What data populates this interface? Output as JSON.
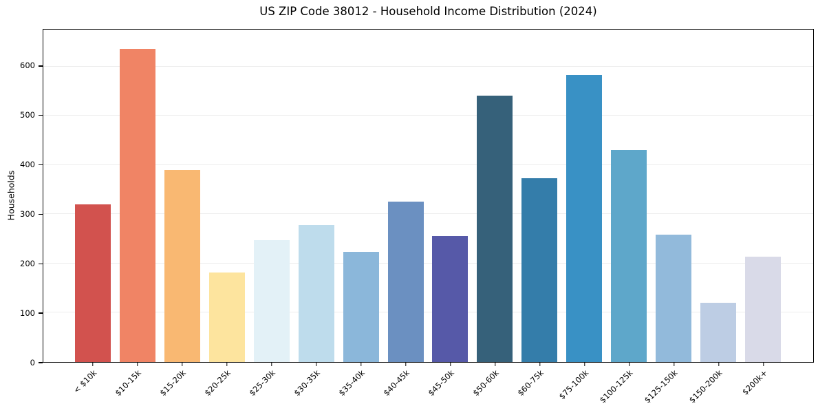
{
  "title": "US ZIP Code 38012 - Household Income Distribution (2024)",
  "chart_data": {
    "type": "bar",
    "title": "US ZIP Code 38012 - Household Income Distribution (2024)",
    "xlabel": "",
    "ylabel": "Households",
    "ylim": [
      0,
      675
    ],
    "yticks": [
      0,
      100,
      200,
      300,
      400,
      500,
      600
    ],
    "grid": "horizontal-light-gray",
    "legend": "none",
    "categories": [
      "< $10k",
      "$10-15k",
      "$15-20k",
      "$20-25k",
      "$25-30k",
      "$30-35k",
      "$35-40k",
      "$40-45k",
      "$45-50k",
      "$50-60k",
      "$60-75k",
      "$75-100k",
      "$100-125k",
      "$125-150k",
      "$150-200k",
      "$200k+"
    ],
    "values": [
      320,
      636,
      390,
      182,
      248,
      278,
      224,
      325,
      256,
      541,
      373,
      583,
      430,
      258,
      120,
      214
    ],
    "bar_colors": [
      "#d2524e",
      "#f08465",
      "#f9b872",
      "#fde49e",
      "#e3f1f7",
      "#bedcec",
      "#8bb7da",
      "#6b90c1",
      "#5659a8",
      "#36617a",
      "#347daa",
      "#3991c5",
      "#5ea7ca",
      "#92badb",
      "#bdcde4",
      "#d9dae8"
    ],
    "style_colors": {
      "grid": "#ececec",
      "spine": "#000000",
      "text": "#000000",
      "background": "#ffffff"
    }
  }
}
